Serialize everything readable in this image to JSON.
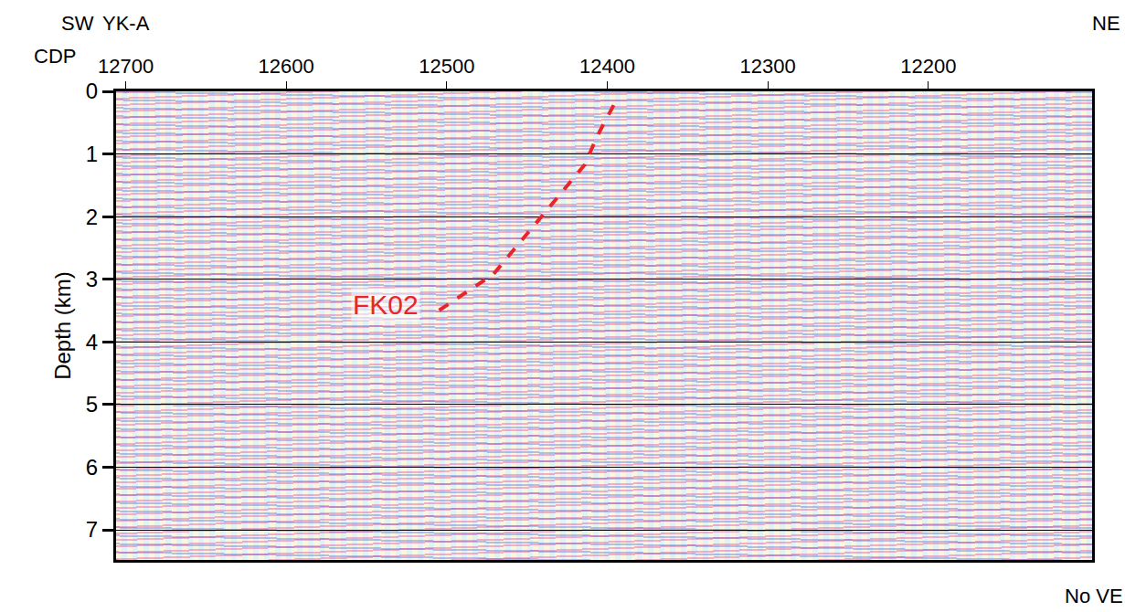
{
  "chart_data": {
    "type": "line",
    "x_label": "CDP",
    "y_label": "Depth (km)",
    "xlim": [
      12706,
      12098
    ],
    "ylim": [
      7.48,
      0
    ],
    "xticks": [
      12700,
      12600,
      12500,
      12400,
      12300,
      12200
    ],
    "yticks": [
      0,
      1,
      2,
      3,
      4,
      5,
      6,
      7
    ],
    "grid": "y",
    "series": [
      {
        "name": "FK02",
        "color": "#e8262a",
        "line_style": "dash",
        "x": [
          12396,
          12406,
          12414,
          12442,
          12471,
          12505
        ],
        "values": [
          0.22,
          0.7,
          1.17,
          2.04,
          2.92,
          3.5
        ]
      }
    ],
    "annotations": [
      {
        "text": "FK02",
        "x": 12538,
        "y": 3.4
      }
    ],
    "markers": [
      {
        "text": "YK-A",
        "x": 12700
      }
    ],
    "labels": {
      "left": "SW",
      "right": "NE",
      "note": "No VE"
    }
  }
}
